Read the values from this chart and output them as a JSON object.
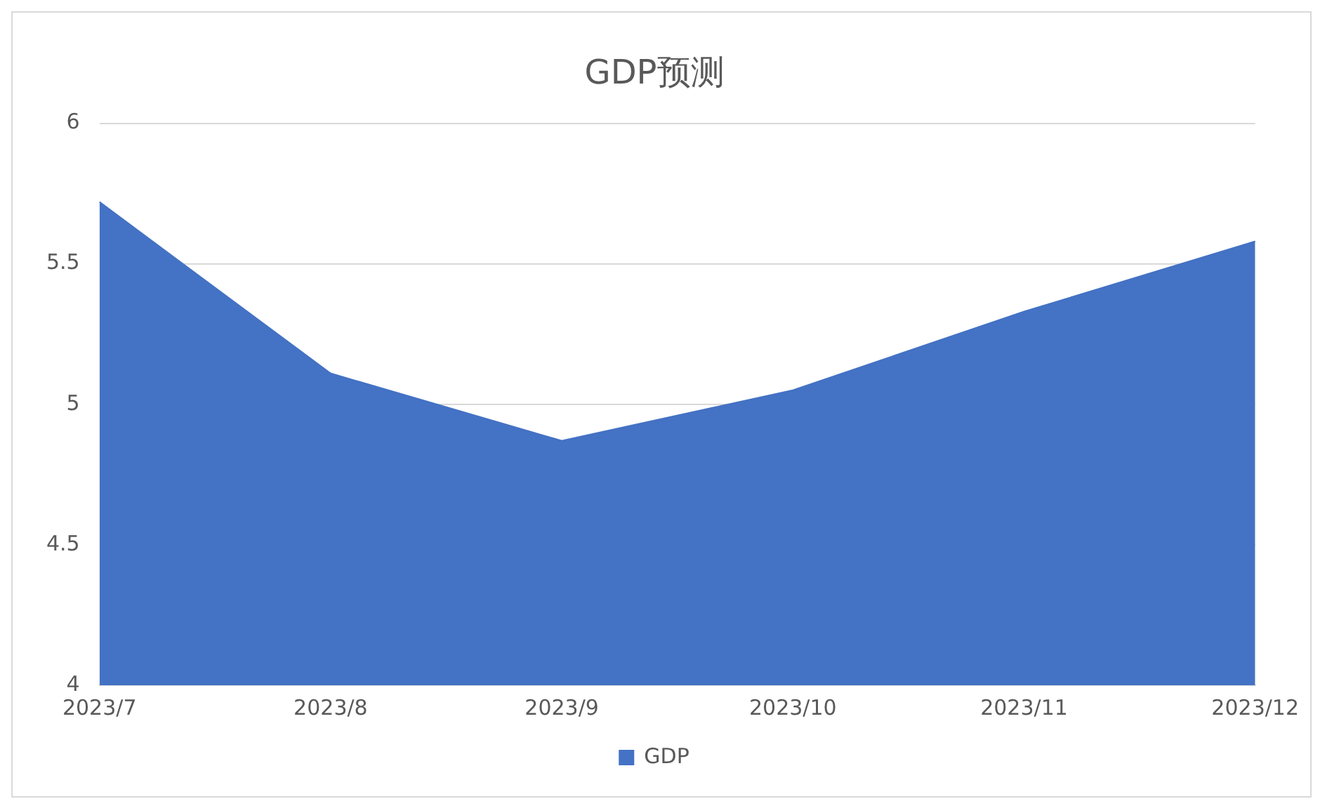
{
  "chart_data": {
    "type": "area",
    "title": "GDP预测",
    "categories": [
      "2023/7",
      "2023/8",
      "2023/9",
      "2023/10",
      "2023/11",
      "2023/12"
    ],
    "series": [
      {
        "name": "GDP",
        "color": "#4472c4",
        "values": [
          5.72,
          5.11,
          4.87,
          5.05,
          5.33,
          5.58
        ]
      }
    ],
    "ylim": [
      4,
      6
    ],
    "yticks": [
      4,
      4.5,
      5,
      5.5,
      6
    ],
    "grid": "y",
    "legend": "bottom"
  }
}
